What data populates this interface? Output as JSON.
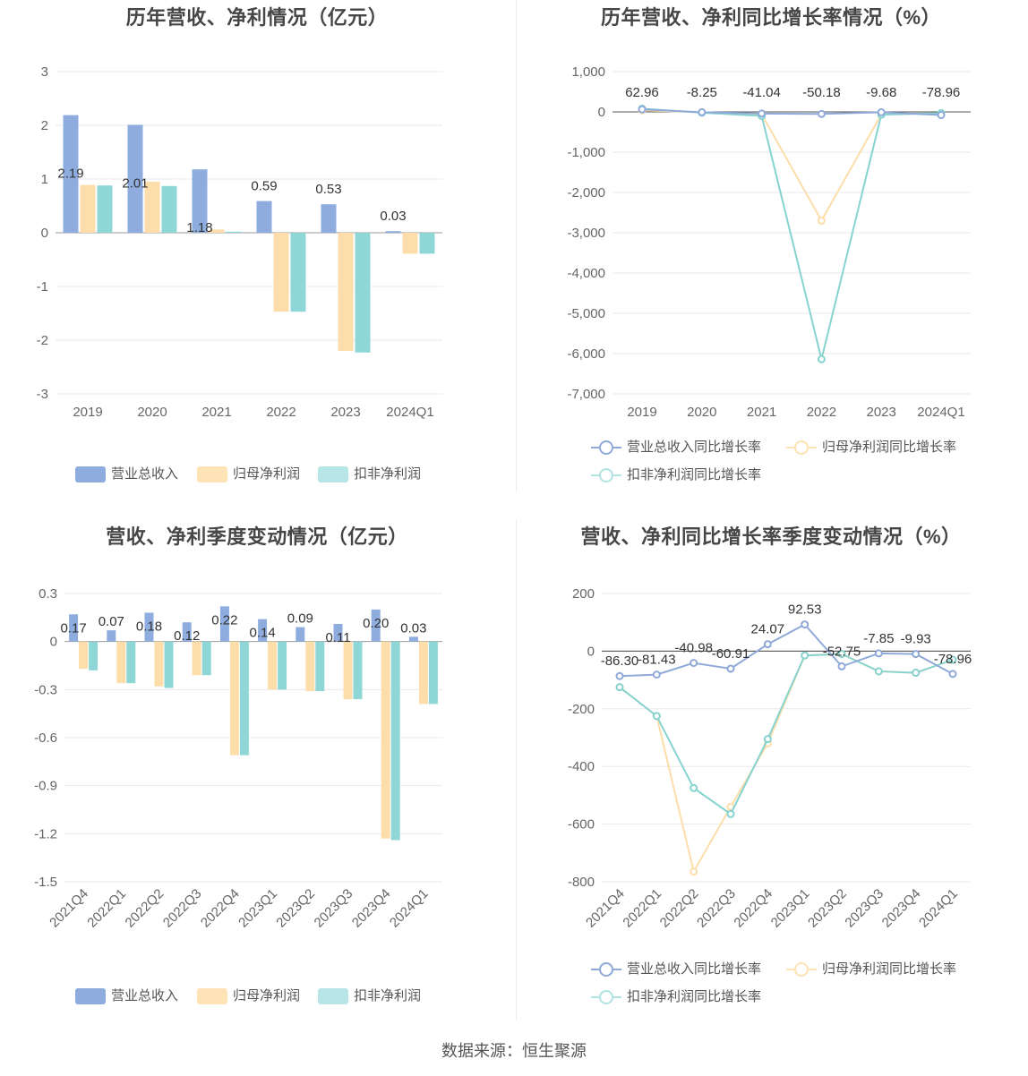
{
  "source": "数据来源：恒生聚源",
  "colors": {
    "revenue": "#8eadde",
    "net": "#fdddaa",
    "deducted": "#8fd6d6",
    "revenue_line": "#8fa9d9",
    "net_line": "#fdddaa",
    "deducted_line": "#86d3d0"
  },
  "chart_data": [
    {
      "type": "bar",
      "title": "历年营收、净利情况（亿元）",
      "categories": [
        "2019",
        "2020",
        "2021",
        "2022",
        "2023",
        "2024Q1"
      ],
      "ylim": [
        -3,
        3
      ],
      "yticks": [
        "3",
        "2",
        "1",
        "0",
        "-1",
        "-2",
        "-3"
      ],
      "series": [
        {
          "name": "营业总收入",
          "values": [
            2.19,
            2.01,
            1.18,
            0.59,
            0.53,
            0.03
          ],
          "labels": [
            "2.19",
            "2.01",
            "1.18",
            "0.59",
            "0.53",
            "0.03"
          ]
        },
        {
          "name": "归母净利润",
          "values": [
            0.89,
            0.95,
            0.06,
            -1.47,
            -2.2,
            -0.39
          ]
        },
        {
          "name": "扣非净利润",
          "values": [
            0.88,
            0.87,
            0.02,
            -1.47,
            -2.23,
            -0.39
          ]
        }
      ],
      "legend": "bottom"
    },
    {
      "type": "line",
      "title": "历年营收、净利同比增长率情况（%）",
      "categories": [
        "2019",
        "2020",
        "2021",
        "2022",
        "2023",
        "2024Q1"
      ],
      "ylim": [
        -7000,
        1000
      ],
      "yticks": [
        "1,000",
        "0",
        "-1,000",
        "-2,000",
        "-3,000",
        "-4,000",
        "-5,000",
        "-6,000",
        "-7,000"
      ],
      "series": [
        {
          "name": "营业总收入同比增长率",
          "values": [
            62.96,
            -8.25,
            -41.04,
            -50.18,
            -9.68,
            -78.96
          ],
          "labels": [
            "62.96",
            "-8.25",
            "-41.04",
            "-50.18",
            "-9.68",
            "-78.96"
          ]
        },
        {
          "name": "归母净利润同比增长率",
          "values": [
            40,
            -10,
            -60,
            -2700,
            -60,
            -30
          ]
        },
        {
          "name": "扣非净利润同比增长率",
          "values": [
            80,
            -20,
            -100,
            -6140,
            -70,
            -30
          ]
        }
      ],
      "legend": "bottom"
    },
    {
      "type": "bar",
      "title": "营收、净利季度变动情况（亿元）",
      "categories": [
        "2021Q4",
        "2022Q1",
        "2022Q2",
        "2022Q3",
        "2022Q4",
        "2023Q1",
        "2023Q2",
        "2023Q3",
        "2023Q4",
        "2024Q1"
      ],
      "ylim": [
        -1.5,
        0.3
      ],
      "yticks": [
        "0.3",
        "0",
        "-0.3",
        "-0.6",
        "-0.9",
        "-1.2",
        "-1.5"
      ],
      "series": [
        {
          "name": "营业总收入",
          "values": [
            0.17,
            0.07,
            0.18,
            0.12,
            0.22,
            0.14,
            0.09,
            0.11,
            0.2,
            0.03
          ],
          "labels": [
            "0.17",
            "0.07",
            "0.18",
            "0.12",
            "0.22",
            "0.14",
            "0.09",
            "0.11",
            "0.20",
            "0.03"
          ]
        },
        {
          "name": "归母净利润",
          "values": [
            -0.17,
            -0.26,
            -0.28,
            -0.21,
            -0.71,
            -0.3,
            -0.31,
            -0.36,
            -1.23,
            -0.39
          ]
        },
        {
          "name": "扣非净利润",
          "values": [
            -0.18,
            -0.26,
            -0.29,
            -0.21,
            -0.71,
            -0.3,
            -0.31,
            -0.36,
            -1.24,
            -0.39
          ]
        }
      ],
      "legend": "bottom"
    },
    {
      "type": "line",
      "title": "营收、净利同比增长率季度变动情况（%）",
      "categories": [
        "2021Q4",
        "2022Q1",
        "2022Q2",
        "2022Q3",
        "2022Q4",
        "2023Q1",
        "2023Q2",
        "2023Q3",
        "2023Q4",
        "2024Q1"
      ],
      "ylim": [
        -800,
        200
      ],
      "yticks": [
        "200",
        "0",
        "-200",
        "-400",
        "-600",
        "-800"
      ],
      "series": [
        {
          "name": "营业总收入同比增长率",
          "values": [
            -86.3,
            -81.43,
            -40.98,
            -60.91,
            24.07,
            92.53,
            -52.75,
            -7.85,
            -9.93,
            -78.96
          ],
          "labels": [
            "-86.30",
            "-81.43",
            "-40.98",
            "-60.91",
            "24.07",
            "92.53",
            "-52.75",
            "-7.85",
            "-9.93",
            "-78.96"
          ]
        },
        {
          "name": "归母净利润同比增长率",
          "values": [
            -125,
            -225,
            -765,
            -540,
            -320,
            -15,
            -10,
            -70,
            -75,
            -30
          ]
        },
        {
          "name": "扣非净利润同比增长率",
          "values": [
            -125,
            -225,
            -475,
            -565,
            -305,
            -15,
            -10,
            -70,
            -75,
            -30
          ]
        }
      ],
      "legend": "bottom"
    }
  ]
}
